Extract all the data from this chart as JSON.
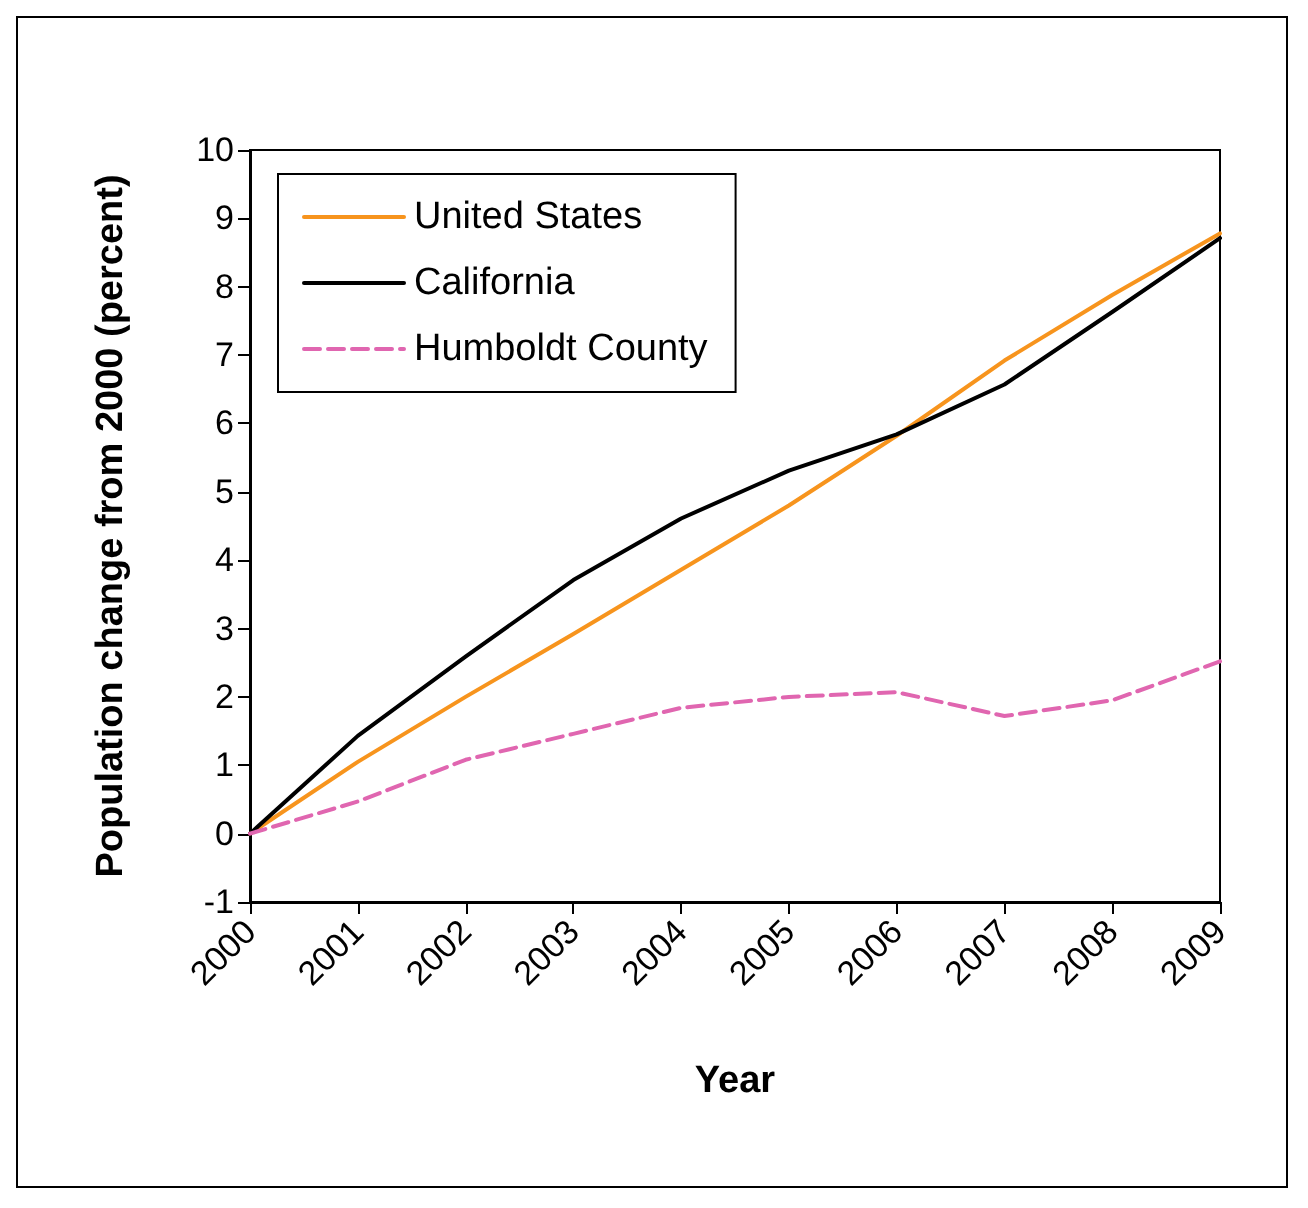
{
  "chart_data": {
    "type": "line",
    "xlabel": "Year",
    "ylabel": "Population change from 2000 (percent)",
    "categories": [
      "2000",
      "2001",
      "2002",
      "2003",
      "2004",
      "2005",
      "2006",
      "2007",
      "2008",
      "2009"
    ],
    "series": [
      {
        "name": "United States",
        "color": "#f7941d",
        "values": [
          0,
          1.05,
          2.0,
          2.92,
          3.86,
          4.8,
          5.82,
          6.92,
          7.88,
          8.78
        ]
      },
      {
        "name": "California",
        "color": "#000000",
        "values": [
          0,
          1.43,
          2.59,
          3.71,
          4.61,
          5.31,
          5.84,
          6.57,
          7.63,
          8.71
        ]
      },
      {
        "name": "Humboldt County",
        "color": "#e066b0",
        "line_style": "dashed",
        "values": [
          0,
          0.47,
          1.08,
          1.46,
          1.84,
          2.0,
          2.07,
          1.72,
          1.95,
          2.52
        ]
      }
    ],
    "ylim": [
      -1,
      10
    ],
    "yticks": [
      -1,
      0,
      1,
      2,
      3,
      4,
      5,
      6,
      7,
      8,
      9,
      10
    ],
    "grid": false,
    "legend": "top left",
    "marker": "none",
    "line_style": "solid"
  }
}
